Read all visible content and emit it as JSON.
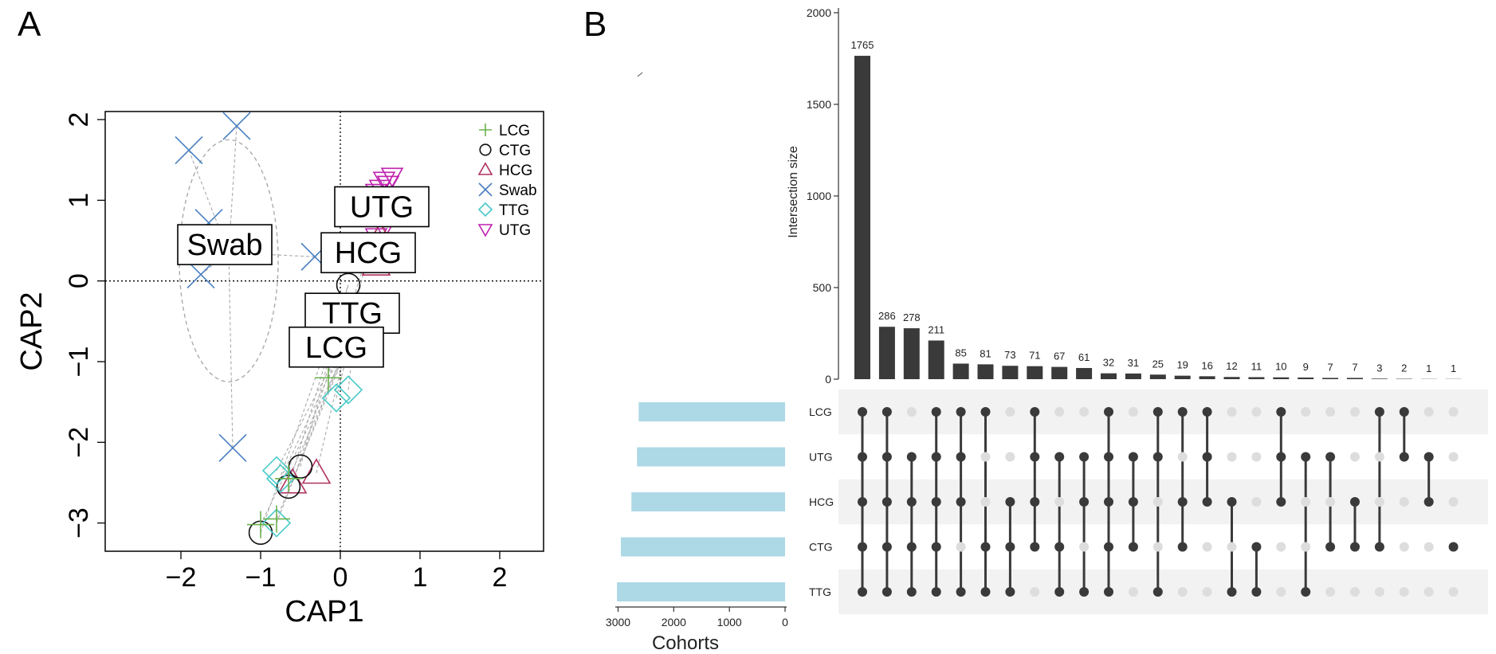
{
  "panel_labels": {
    "a": "A",
    "b": "B"
  },
  "colors": {
    "LCG": "#6ab04c",
    "CTG": "#111111",
    "HCG": "#b03060",
    "Swab": "#4a7fc1",
    "TTG": "#48c9c9",
    "UTG": "#c020b0",
    "bar": "#3a3a3a",
    "set_bar": "#add8e6",
    "dot_on": "#3a3a3a",
    "dot_off": "#dddddd",
    "stripe": "#f2f2f2",
    "ellipse": "#aaaaaa"
  },
  "chart_data": [
    {
      "type": "scatter",
      "xlabel": "CAP1",
      "ylabel": "CAP2",
      "xlim": [
        -2.95,
        2.55
      ],
      "ylim": [
        -3.35,
        2.1
      ],
      "xticks": [
        -2,
        -1,
        0,
        1,
        2
      ],
      "yticks": [
        -3,
        -2,
        -1,
        0,
        1,
        2
      ],
      "zero_lines": true,
      "legend_position": "top-right",
      "legend": [
        {
          "label": "LCG",
          "marker": "plus"
        },
        {
          "label": "CTG",
          "marker": "circle"
        },
        {
          "label": "HCG",
          "marker": "triangle-up"
        },
        {
          "label": "Swab",
          "marker": "x"
        },
        {
          "label": "TTG",
          "marker": "diamond"
        },
        {
          "label": "UTG",
          "marker": "triangle-down"
        }
      ],
      "series": [
        {
          "name": "Swab",
          "marker": "x",
          "centroid": [
            -1.4,
            0.35
          ],
          "points": [
            [
              -1.9,
              1.62
            ],
            [
              -1.3,
              1.92
            ],
            [
              -1.65,
              0.72
            ],
            [
              -1.75,
              0.08
            ],
            [
              -0.32,
              0.3
            ],
            [
              -1.35,
              -2.07
            ]
          ]
        },
        {
          "name": "UTG",
          "marker": "triangle-down",
          "centroid": [
            0.5,
            0.9
          ],
          "points": [
            [
              0.55,
              1.25
            ],
            [
              0.6,
              1.2
            ],
            [
              0.5,
              1.15
            ],
            [
              0.65,
              1.3
            ],
            [
              0.45,
              1.1
            ],
            [
              0.6,
              1.05
            ],
            [
              0.5,
              0.95
            ],
            [
              0.55,
              0.65
            ],
            [
              0.45,
              0.55
            ]
          ]
        },
        {
          "name": "HCG",
          "marker": "triangle-up",
          "centroid": [
            0.35,
            0.35
          ],
          "points": [
            [
              0.5,
              0.55
            ],
            [
              0.4,
              0.3
            ],
            [
              0.45,
              0.2
            ],
            [
              -0.3,
              -2.38
            ],
            [
              -0.6,
              -2.5
            ]
          ]
        },
        {
          "name": "CTG",
          "marker": "circle",
          "centroid": [
            0.1,
            -0.05
          ],
          "points": [
            [
              0.1,
              -0.05
            ],
            [
              -0.5,
              -2.3
            ],
            [
              -0.65,
              -2.55
            ],
            [
              -1.0,
              -3.12
            ]
          ]
        },
        {
          "name": "TTG",
          "marker": "diamond",
          "centroid": [
            0.2,
            -0.45
          ],
          "points": [
            [
              0.1,
              -1.35
            ],
            [
              -0.05,
              -1.45
            ],
            [
              -0.8,
              -2.35
            ],
            [
              -0.75,
              -2.45
            ],
            [
              -0.8,
              -3.0
            ]
          ]
        },
        {
          "name": "LCG",
          "marker": "plus",
          "centroid": [
            0.1,
            -0.8
          ],
          "points": [
            [
              -0.15,
              -1.2
            ],
            [
              -0.65,
              -2.45
            ],
            [
              -1.0,
              -3.02
            ],
            [
              -0.8,
              -2.95
            ]
          ]
        }
      ],
      "group_labels": [
        {
          "text": "Swab",
          "x": -1.45,
          "y": 0.45
        },
        {
          "text": "UTG",
          "x": 0.52,
          "y": 0.92
        },
        {
          "text": "HCG",
          "x": 0.35,
          "y": 0.35
        },
        {
          "text": "TTG",
          "x": 0.15,
          "y": -0.4
        },
        {
          "text": "LCG",
          "x": -0.05,
          "y": -0.82
        }
      ],
      "ellipse": {
        "cx": -1.4,
        "cy": 0.25,
        "rx": 0.62,
        "ry": 1.5
      }
    },
    {
      "type": "bar",
      "ylabel": "Intersection size",
      "ylim": [
        0,
        2000
      ],
      "yticks": [
        0,
        500,
        1000,
        1500,
        2000
      ],
      "values": [
        1765,
        286,
        278,
        211,
        85,
        81,
        73,
        71,
        67,
        61,
        32,
        31,
        25,
        19,
        16,
        12,
        11,
        10,
        9,
        7,
        7,
        3,
        2,
        1,
        1
      ],
      "sets": [
        "LCG",
        "UTG",
        "HCG",
        "CTG",
        "TTG"
      ],
      "matrix": [
        [
          1,
          1,
          1,
          1,
          1
        ],
        [
          1,
          1,
          1,
          1,
          1
        ],
        [
          0,
          1,
          1,
          1,
          1
        ],
        [
          1,
          1,
          1,
          1,
          1
        ],
        [
          1,
          1,
          1,
          0,
          1
        ],
        [
          1,
          0,
          0,
          1,
          1
        ],
        [
          0,
          0,
          1,
          1,
          1
        ],
        [
          1,
          1,
          1,
          1,
          0
        ],
        [
          0,
          1,
          0,
          1,
          1
        ],
        [
          0,
          1,
          1,
          0,
          1
        ],
        [
          1,
          1,
          1,
          1,
          1
        ],
        [
          0,
          1,
          1,
          1,
          0
        ],
        [
          1,
          1,
          0,
          0,
          1
        ],
        [
          1,
          0,
          1,
          1,
          0
        ],
        [
          1,
          1,
          1,
          0,
          0
        ],
        [
          0,
          0,
          1,
          0,
          1
        ],
        [
          0,
          0,
          0,
          1,
          1
        ],
        [
          1,
          1,
          1,
          0,
          0
        ],
        [
          0,
          1,
          0,
          0,
          1
        ],
        [
          0,
          1,
          0,
          1,
          0
        ],
        [
          0,
          0,
          1,
          1,
          0
        ],
        [
          1,
          0,
          0,
          1,
          0
        ],
        [
          1,
          1,
          0,
          0,
          0
        ],
        [
          0,
          1,
          1,
          0,
          0
        ],
        [
          0,
          0,
          0,
          1,
          0
        ]
      ],
      "set_sizes": {
        "title": "Cohorts",
        "xticks": [
          3000,
          2000,
          1000,
          0
        ],
        "xlim": [
          3050,
          0
        ],
        "values": [
          2630,
          2660,
          2760,
          2950,
          3020
        ]
      }
    }
  ]
}
